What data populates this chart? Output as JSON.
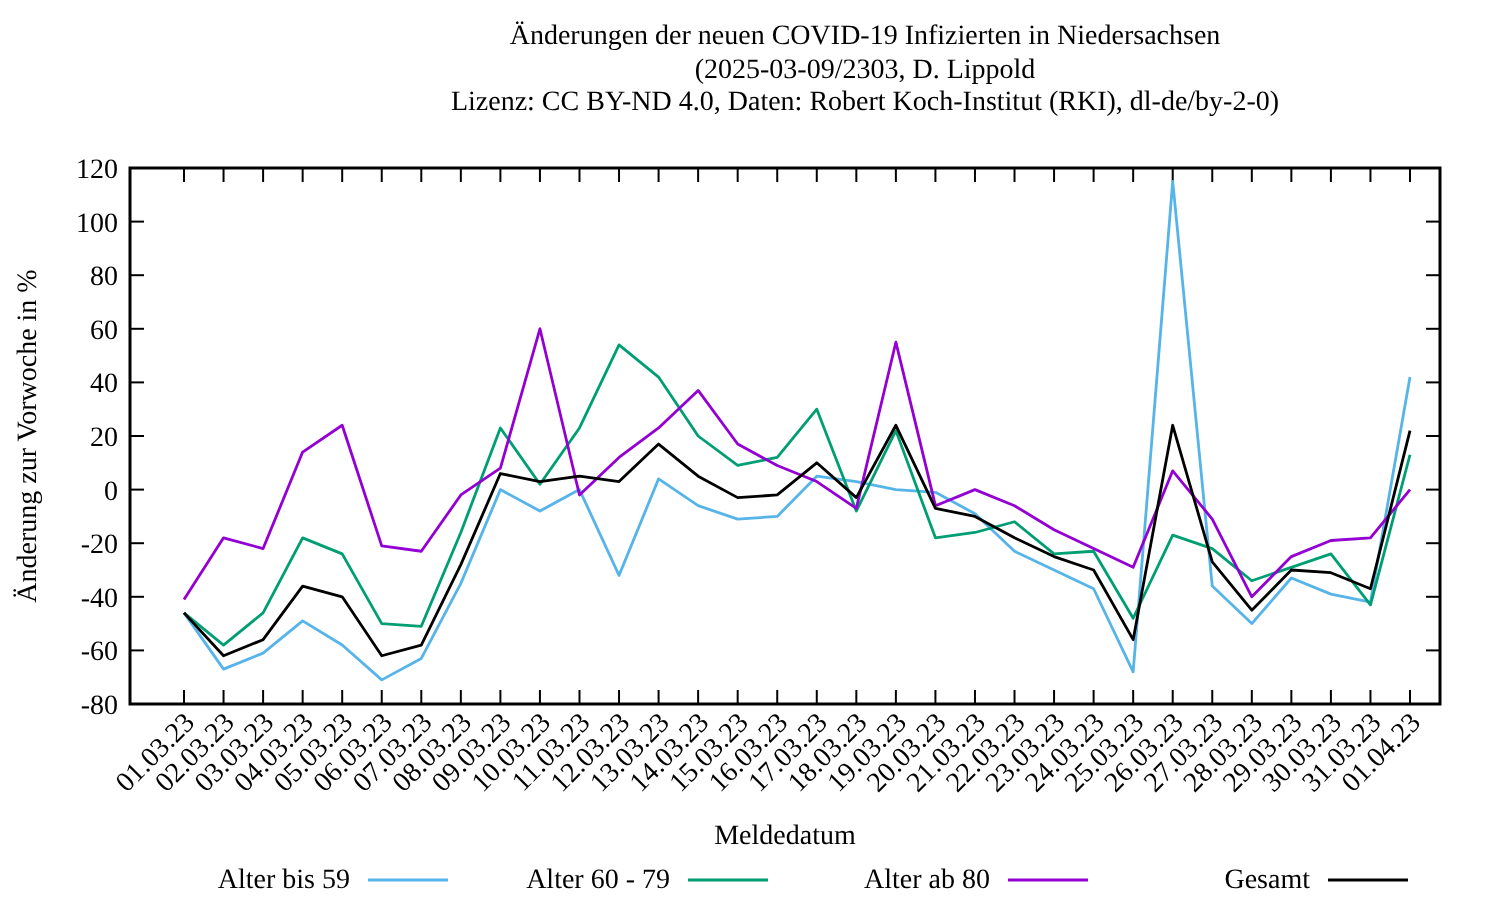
{
  "chart_data": {
    "type": "line",
    "title": "Änderungen der neuen COVID-19 Infizierten in Niedersachsen",
    "subtitle": "(2025-03-09/2303, D. Lippold\nLizenz: CC BY-ND 4.0, Daten: Robert Koch-Institut (RKI), dl-de/by-2-0)",
    "xlabel": "Meldedatum",
    "ylabel": "Änderung zur Vorwoche in %",
    "categories": [
      "01.03.23",
      "02.03.23",
      "03.03.23",
      "04.03.23",
      "05.03.23",
      "06.03.23",
      "07.03.23",
      "08.03.23",
      "09.03.23",
      "10.03.23",
      "11.03.23",
      "12.03.23",
      "13.03.23",
      "14.03.23",
      "15.03.23",
      "16.03.23",
      "17.03.23",
      "18.03.23",
      "19.03.23",
      "20.03.23",
      "21.03.23",
      "22.03.23",
      "23.03.23",
      "24.03.23",
      "25.03.23",
      "26.03.23",
      "27.03.23",
      "28.03.23",
      "29.03.23",
      "30.03.23",
      "31.03.23",
      "01.04.23"
    ],
    "ylim": [
      -80,
      120
    ],
    "yticks": [
      -80,
      -60,
      -40,
      -20,
      0,
      20,
      40,
      60,
      80,
      100,
      120
    ],
    "legend": "bottom",
    "grid": false,
    "marker": "none",
    "line_style": "solid",
    "series": [
      {
        "name": "Alter bis 59",
        "color": "#56b4e9",
        "values": [
          -46,
          -67,
          -61,
          -49,
          -58,
          -71,
          -63,
          -35,
          0,
          -8,
          0,
          -32,
          4,
          -6,
          -11,
          -10,
          5,
          3,
          0,
          -1,
          -9,
          -23,
          -30,
          -37,
          -68,
          115,
          -36,
          -50,
          -33,
          -39,
          -42,
          42
        ]
      },
      {
        "name": "Alter 60 - 79",
        "color": "#009e73",
        "values": [
          -46,
          -58,
          -46,
          -18,
          -24,
          -50,
          -51,
          -16,
          23,
          2,
          23,
          54,
          42,
          20,
          9,
          12,
          30,
          -8,
          22,
          -18,
          -16,
          -12,
          -24,
          -23,
          -48,
          -17,
          -22,
          -34,
          -29,
          -24,
          -43,
          13
        ]
      },
      {
        "name": "Alter ab 80",
        "color": "#9400d3",
        "values": [
          -41,
          -18,
          -22,
          14,
          24,
          -21,
          -23,
          -2,
          8,
          60,
          -2,
          12,
          23,
          37,
          17,
          9,
          3,
          -7,
          55,
          -6,
          0,
          -6,
          -15,
          -22,
          -29,
          7,
          -11,
          -40,
          -25,
          -19,
          -18,
          0
        ]
      },
      {
        "name": "Gesamt",
        "color": "#000000",
        "values": [
          -46,
          -62,
          -56,
          -36,
          -40,
          -62,
          -58,
          -28,
          6,
          3,
          5,
          3,
          17,
          5,
          -3,
          -2,
          10,
          -3,
          24,
          -7,
          -10,
          -18,
          -25,
          -30,
          -56,
          24,
          -27,
          -45,
          -30,
          -31,
          -37,
          22
        ]
      }
    ]
  }
}
